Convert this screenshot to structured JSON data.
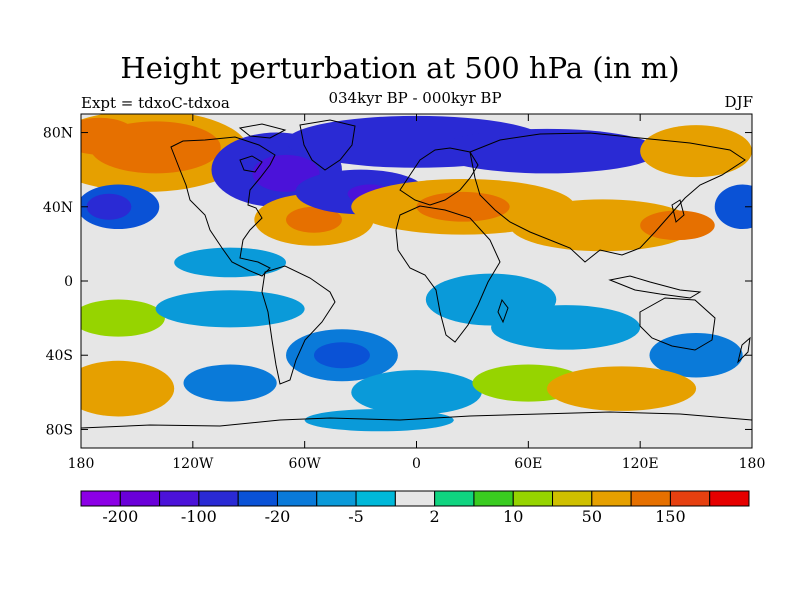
{
  "title": "Height perturbation at 500 hPa (in m)",
  "subtitle": "034kyr BP - 000kyr BP",
  "left_label": "Expt = tdxoC-tdxoa",
  "right_label": "DJF",
  "lon_ticks": [
    {
      "value": -180,
      "label": "180"
    },
    {
      "value": -120,
      "label": "120W"
    },
    {
      "value": -60,
      "label": "60W"
    },
    {
      "value": 0,
      "label": "0"
    },
    {
      "value": 60,
      "label": "60E"
    },
    {
      "value": 120,
      "label": "120E"
    },
    {
      "value": 180,
      "label": "180"
    }
  ],
  "lat_ticks": [
    {
      "value": 80,
      "label": "80N"
    },
    {
      "value": 40,
      "label": "40N"
    },
    {
      "value": 0,
      "label": "0"
    },
    {
      "value": -40,
      "label": "40S"
    },
    {
      "value": -80,
      "label": "80S"
    }
  ],
  "colorbar": {
    "colors": [
      "#8c00e6",
      "#6a00d9",
      "#4b12d9",
      "#2a2ad4",
      "#0a52d6",
      "#0a7ad9",
      "#0a9ad9",
      "#00b8d9",
      "#e6e6e6",
      "#10d480",
      "#3acc20",
      "#96d400",
      "#cfc000",
      "#e6a000",
      "#e67000",
      "#e64010",
      "#e60000"
    ],
    "labels": [
      {
        "index": 1,
        "label": "-200"
      },
      {
        "index": 3,
        "label": "-100"
      },
      {
        "index": 5,
        "label": "-20"
      },
      {
        "index": 7,
        "label": "-5"
      },
      {
        "index": 9,
        "label": "2"
      },
      {
        "index": 11,
        "label": "10"
      },
      {
        "index": 13,
        "label": "50"
      },
      {
        "index": 15,
        "label": "150"
      }
    ]
  },
  "field_blobs": [
    {
      "lon": -145,
      "lat": 70,
      "rx": 55,
      "ry": 22,
      "level": 13
    },
    {
      "lon": -140,
      "lat": 72,
      "rx": 35,
      "ry": 14,
      "level": 14
    },
    {
      "lon": -170,
      "lat": 78,
      "rx": 20,
      "ry": 10,
      "level": 14
    },
    {
      "lon": -160,
      "lat": 40,
      "rx": 22,
      "ry": 12,
      "level": 4
    },
    {
      "lon": -165,
      "lat": 40,
      "rx": 12,
      "ry": 7,
      "level": 3
    },
    {
      "lon": -75,
      "lat": 60,
      "rx": 35,
      "ry": 20,
      "level": 3
    },
    {
      "lon": -70,
      "lat": 58,
      "rx": 18,
      "ry": 10,
      "level": 2
    },
    {
      "lon": -55,
      "lat": 33,
      "rx": 32,
      "ry": 14,
      "level": 13
    },
    {
      "lon": -55,
      "lat": 33,
      "rx": 15,
      "ry": 7,
      "level": 14
    },
    {
      "lon": -30,
      "lat": 48,
      "rx": 35,
      "ry": 12,
      "level": 3
    },
    {
      "lon": -25,
      "lat": 47,
      "rx": 12,
      "ry": 5,
      "level": 2
    },
    {
      "lon": 0,
      "lat": 75,
      "rx": 70,
      "ry": 14,
      "level": 3
    },
    {
      "lon": 25,
      "lat": 40,
      "rx": 60,
      "ry": 15,
      "level": 13
    },
    {
      "lon": 25,
      "lat": 40,
      "rx": 25,
      "ry": 8,
      "level": 14
    },
    {
      "lon": 70,
      "lat": 70,
      "rx": 60,
      "ry": 12,
      "level": 3
    },
    {
      "lon": 100,
      "lat": 30,
      "rx": 50,
      "ry": 14,
      "level": 13
    },
    {
      "lon": 150,
      "lat": 70,
      "rx": 30,
      "ry": 14,
      "level": 13
    },
    {
      "lon": 175,
      "lat": 40,
      "rx": 15,
      "ry": 12,
      "level": 4
    },
    {
      "lon": 140,
      "lat": 30,
      "rx": 20,
      "ry": 8,
      "level": 14
    },
    {
      "lon": -100,
      "lat": 10,
      "rx": 30,
      "ry": 8,
      "level": 6
    },
    {
      "lon": -160,
      "lat": -20,
      "rx": 25,
      "ry": 10,
      "level": 11
    },
    {
      "lon": -100,
      "lat": -15,
      "rx": 40,
      "ry": 10,
      "level": 6
    },
    {
      "lon": -40,
      "lat": -40,
      "rx": 30,
      "ry": 14,
      "level": 5
    },
    {
      "lon": -40,
      "lat": -40,
      "rx": 15,
      "ry": 7,
      "level": 4
    },
    {
      "lon": 40,
      "lat": -10,
      "rx": 35,
      "ry": 14,
      "level": 6
    },
    {
      "lon": 80,
      "lat": -25,
      "rx": 40,
      "ry": 12,
      "level": 6
    },
    {
      "lon": 150,
      "lat": -40,
      "rx": 25,
      "ry": 12,
      "level": 5
    },
    {
      "lon": -160,
      "lat": -58,
      "rx": 30,
      "ry": 15,
      "level": 13
    },
    {
      "lon": -100,
      "lat": -55,
      "rx": 25,
      "ry": 10,
      "level": 5
    },
    {
      "lon": 0,
      "lat": -60,
      "rx": 35,
      "ry": 12,
      "level": 6
    },
    {
      "lon": 60,
      "lat": -55,
      "rx": 30,
      "ry": 10,
      "level": 11
    },
    {
      "lon": 110,
      "lat": -58,
      "rx": 40,
      "ry": 12,
      "level": 13
    },
    {
      "lon": -20,
      "lat": -75,
      "rx": 40,
      "ry": 6,
      "level": 6
    }
  ]
}
